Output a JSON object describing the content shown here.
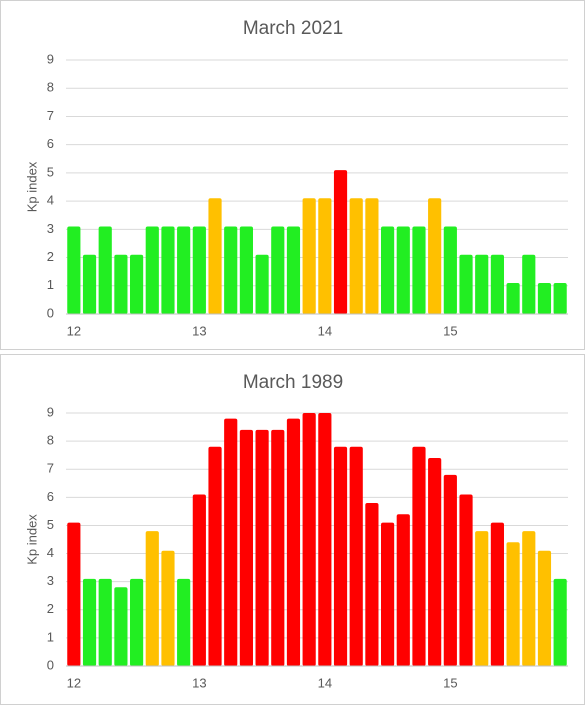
{
  "chart_data": [
    {
      "type": "bar",
      "title": "March 2021",
      "y_label": "Kp index",
      "categories": [
        "12",
        null,
        null,
        null,
        null,
        null,
        null,
        null,
        "13",
        null,
        null,
        null,
        null,
        null,
        null,
        null,
        "14",
        null,
        null,
        null,
        null,
        null,
        null,
        null,
        "15",
        null,
        null,
        null,
        null,
        null,
        null,
        null
      ],
      "values": [
        3.1,
        2.1,
        3.1,
        2.1,
        2.1,
        3.1,
        3.1,
        3.1,
        3.1,
        4.1,
        3.1,
        3.1,
        2.1,
        3.1,
        3.1,
        4.1,
        4.1,
        5.1,
        4.1,
        4.1,
        3.1,
        3.1,
        3.1,
        4.1,
        3.1,
        2.1,
        2.1,
        2.1,
        1.1,
        2.1,
        1.1,
        1.1
      ],
      "colors": [
        "#22ee22",
        "#22ee22",
        "#22ee22",
        "#22ee22",
        "#22ee22",
        "#22ee22",
        "#22ee22",
        "#22ee22",
        "#22ee22",
        "#ffc000",
        "#22ee22",
        "#22ee22",
        "#22ee22",
        "#22ee22",
        "#22ee22",
        "#ffc000",
        "#ffc000",
        "#ff0000",
        "#ffc000",
        "#ffc000",
        "#22ee22",
        "#22ee22",
        "#22ee22",
        "#ffc000",
        "#22ee22",
        "#22ee22",
        "#22ee22",
        "#22ee22",
        "#22ee22",
        "#22ee22",
        "#22ee22",
        "#22ee22"
      ],
      "ylim": [
        0,
        9
      ],
      "yticks": [
        0,
        1,
        2,
        3,
        4,
        5,
        6,
        7,
        8,
        9
      ],
      "grid": true
    },
    {
      "type": "bar",
      "title": "March 1989",
      "y_label": "Kp index",
      "categories": [
        "12",
        null,
        null,
        null,
        null,
        null,
        null,
        null,
        "13",
        null,
        null,
        null,
        null,
        null,
        null,
        null,
        "14",
        null,
        null,
        null,
        null,
        null,
        null,
        null,
        "15",
        null,
        null,
        null,
        null,
        null,
        null,
        null
      ],
      "values": [
        5.1,
        3.1,
        3.1,
        2.8,
        3.1,
        4.8,
        4.1,
        3.1,
        6.1,
        7.8,
        8.8,
        8.4,
        8.4,
        8.4,
        8.8,
        9,
        9,
        7.8,
        7.8,
        5.8,
        5.1,
        5.4,
        7.8,
        7.4,
        6.8,
        6.1,
        4.8,
        5.1,
        4.4,
        4.8,
        4.1,
        3.1
      ],
      "colors": [
        "#ff0000",
        "#22ee22",
        "#22ee22",
        "#22ee22",
        "#22ee22",
        "#ffc000",
        "#ffc000",
        "#22ee22",
        "#ff0000",
        "#ff0000",
        "#ff0000",
        "#ff0000",
        "#ff0000",
        "#ff0000",
        "#ff0000",
        "#ff0000",
        "#ff0000",
        "#ff0000",
        "#ff0000",
        "#ff0000",
        "#ff0000",
        "#ff0000",
        "#ff0000",
        "#ff0000",
        "#ff0000",
        "#ff0000",
        "#ffc000",
        "#ff0000",
        "#ffc000",
        "#ffc000",
        "#ffc000",
        "#22ee22"
      ],
      "ylim": [
        0,
        9
      ],
      "yticks": [
        0,
        1,
        2,
        3,
        4,
        5,
        6,
        7,
        8,
        9
      ],
      "grid": true
    }
  ]
}
